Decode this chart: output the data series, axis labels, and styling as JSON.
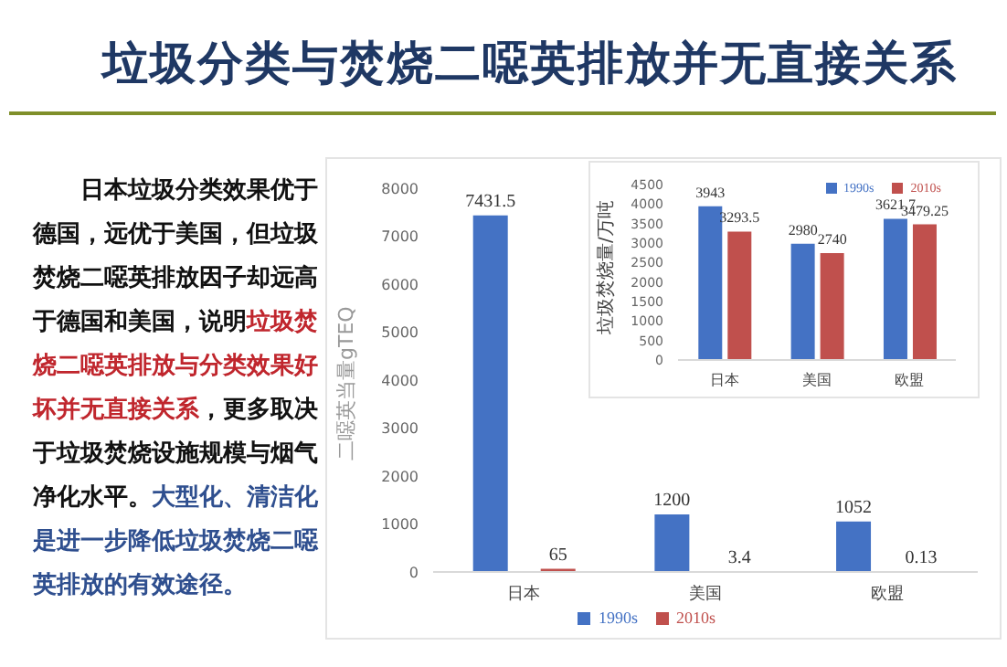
{
  "chart_data": [
    {
      "type": "bar",
      "title": "垃圾分类与焚烧二噁英排放并无直接关系",
      "annotations": [
        "日本垃圾分类效果优于德国，远优于美国，但垃圾焚烧二噁英排放因子却远高于德国和美国，说明",
        "垃圾焚烧二噁英排放与分类效果好坏并无直接关系",
        "，更多取决于垃圾焚烧设施规模与烟气净化水平。",
        "大型化、清洁化是进一步降低垃圾焚烧二噁英排放的有效途径。"
      ],
      "ylabel": "二噁英当量gTEQ",
      "categories": [
        "日本",
        "美国",
        "欧盟"
      ],
      "series": [
        {
          "name": "1990s",
          "color": "#4472c4",
          "values": [
            7431.5,
            1200,
            1052
          ]
        },
        {
          "name": "2010s",
          "color": "#c0504d",
          "values": [
            65,
            3.4,
            0.13
          ]
        }
      ],
      "ylim": [
        0,
        8000
      ],
      "yticks": [
        0,
        1000,
        2000,
        3000,
        4000,
        5000,
        6000,
        7000,
        8000
      ],
      "data_labels": true,
      "legend": "bottom",
      "grid": false
    },
    {
      "type": "bar",
      "ylabel": "垃圾焚烧量/万吨",
      "categories": [
        "日本",
        "美国",
        "欧盟"
      ],
      "series": [
        {
          "name": "1990s",
          "color": "#4472c4",
          "values": [
            3943,
            2980,
            3621.7
          ]
        },
        {
          "name": "2010s",
          "color": "#c0504d",
          "values": [
            3293.5,
            2740,
            3479.25
          ]
        }
      ],
      "ylim": [
        0,
        4500
      ],
      "yticks": [
        0,
        500,
        1000,
        1500,
        2000,
        2500,
        3000,
        3500,
        4000,
        4500
      ],
      "data_labels": true,
      "legend": "top right",
      "grid": false
    }
  ]
}
